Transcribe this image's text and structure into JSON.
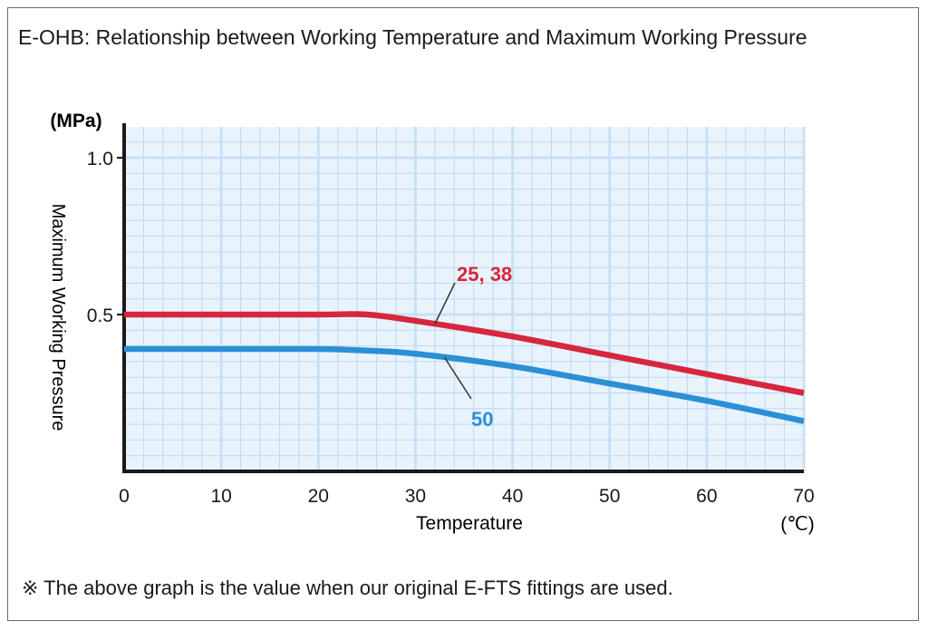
{
  "title": "E-OHB: Relationship between Working Temperature and Maximum Working Pressure",
  "note": "※ The above graph is the value when our original E-FTS fittings are used.",
  "chart_data": {
    "type": "line",
    "title": "E-OHB: Relationship between Working Temperature and Maximum Working Pressure",
    "xlabel": "Temperature",
    "ylabel": "Maximum Working Pressure",
    "x_unit": "(℃)",
    "y_unit": "(MPa)",
    "xlim": [
      0,
      70
    ],
    "ylim": [
      0,
      1.0
    ],
    "x_ticks": [
      0,
      10,
      20,
      30,
      40,
      50,
      60,
      70
    ],
    "y_ticks": [
      0.5,
      1.0
    ],
    "y_tick_labels": [
      "0.5",
      "1.0"
    ],
    "grid": true,
    "legend": "none",
    "series": [
      {
        "name": "25, 38",
        "color": "#d7263d",
        "x": [
          0,
          10,
          20,
          25,
          30,
          40,
          50,
          60,
          70
        ],
        "y": [
          0.5,
          0.5,
          0.5,
          0.5,
          0.48,
          0.43,
          0.37,
          0.31,
          0.25
        ]
      },
      {
        "name": "50",
        "color": "#2b8fd6",
        "x": [
          0,
          10,
          20,
          25,
          30,
          40,
          50,
          60,
          70
        ],
        "y": [
          0.39,
          0.39,
          0.39,
          0.385,
          0.375,
          0.335,
          0.28,
          0.225,
          0.16
        ]
      }
    ]
  }
}
